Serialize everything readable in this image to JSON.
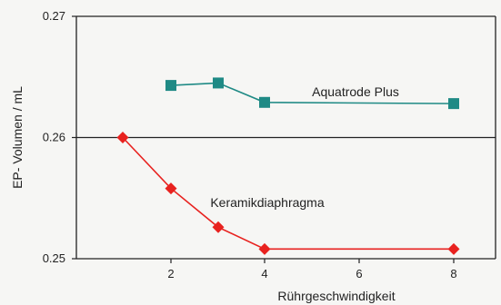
{
  "chart_data": {
    "type": "line",
    "xlabel": "Rührgeschwindigkeit",
    "ylabel": "EP- Volumen / mL",
    "ylim": [
      0.25,
      0.27
    ],
    "y_ticks": [
      "0.27",
      "0.26",
      "0.25"
    ],
    "x_ticks": [
      "2",
      "4",
      "6",
      "8"
    ],
    "x_axis_note": "categorical tick positions: 1,2,3,4 at 2,4,6,8 region",
    "series": [
      {
        "name": "Aquatrode Plus",
        "color": "#1f8a85",
        "marker": "square",
        "points": [
          {
            "x_pos": 2,
            "y": 0.2643
          },
          {
            "x_pos": 3,
            "y": 0.2645
          },
          {
            "x_pos": 4,
            "y": 0.2629
          },
          {
            "x_pos": 8,
            "y": 0.2628
          }
        ]
      },
      {
        "name": "Keramikdiaphragma",
        "color": "#e8221f",
        "marker": "diamond",
        "points": [
          {
            "x_pos": 1,
            "y": 0.26
          },
          {
            "x_pos": 2,
            "y": 0.2558
          },
          {
            "x_pos": 3,
            "y": 0.2526
          },
          {
            "x_pos": 4,
            "y": 0.2508
          },
          {
            "x_pos": 8,
            "y": 0.2508
          }
        ]
      }
    ],
    "grid": "horizontal line at 0.26"
  }
}
